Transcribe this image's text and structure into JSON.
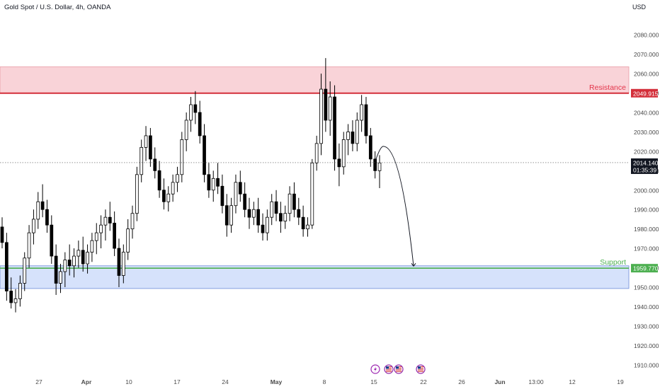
{
  "header": {
    "symbol_title": "Gold Spot / U.S. Dollar, 4h, OANDA",
    "currency": "USD"
  },
  "colors": {
    "up": "#ffffff",
    "down": "#000000",
    "wick": "#000000",
    "resistance_fill": "#f9d3d8",
    "resistance_line": "#d32f3a",
    "resistance_text": "#e3344a",
    "support_fill": "#d6e2fb",
    "support_line": "#4caf50",
    "support_border": "#6d8bd8",
    "price_tag": "#131722",
    "axis_text": "#4a4a4a"
  },
  "chart_data": {
    "type": "candlestick",
    "title": "Gold Spot / U.S. Dollar, 4h, OANDA",
    "y_unit": "USD",
    "ylim": [
      1907,
      2087
    ],
    "y_ticks": [
      "2080.000",
      "2070.000",
      "2060.000",
      "2050.000",
      "2040.000",
      "2030.000",
      "2020.000",
      "2010.000",
      "2000.000",
      "1990.000",
      "1980.000",
      "1970.000",
      "1960.000",
      "1950.000",
      "1940.000",
      "1930.000",
      "1920.000",
      "1910.000"
    ],
    "x_ticks": [
      "27",
      "Apr",
      "10",
      "17",
      "24",
      "May",
      "8",
      "15",
      "22",
      "26",
      "Jun",
      "13:00",
      "12",
      "19"
    ],
    "grid": false,
    "zones": [
      {
        "name": "Resistance",
        "low": 2049.915,
        "high": 2063.5,
        "label": "Resistance",
        "price_label": "2049.915"
      },
      {
        "name": "Support",
        "low": 1949.3,
        "high": 1961.0,
        "line": 1959.77,
        "label": "Support",
        "price_label": "1959.770"
      }
    ],
    "current_price": {
      "value": "2014.140",
      "countdown": "01:35:39"
    },
    "projection": {
      "from": 2016,
      "peak": 2022.5,
      "to": 1960.8,
      "note": "curved arrow projecting a drop to support"
    },
    "event_icons": [
      "flash-icon",
      "us-flag-icon",
      "us-flag-icon",
      "us-flag-icon"
    ],
    "candles": [
      [
        1981,
        1986,
        1970,
        1973
      ],
      [
        1973,
        1978,
        1943,
        1948
      ],
      [
        1948,
        1955,
        1939,
        1942
      ],
      [
        1942,
        1949,
        1937,
        1944
      ],
      [
        1944,
        1956,
        1940,
        1952
      ],
      [
        1952,
        1968,
        1948,
        1965
      ],
      [
        1965,
        1982,
        1960,
        1978
      ],
      [
        1978,
        1990,
        1972,
        1985
      ],
      [
        1985,
        1999,
        1980,
        1994
      ],
      [
        1994,
        2003,
        1986,
        1990
      ],
      [
        1990,
        1995,
        1978,
        1982
      ],
      [
        1982,
        1987,
        1962,
        1966
      ],
      [
        1966,
        1972,
        1946,
        1952
      ],
      [
        1952,
        1962,
        1947,
        1958
      ],
      [
        1958,
        1968,
        1950,
        1964
      ],
      [
        1964,
        1972,
        1956,
        1961
      ],
      [
        1961,
        1970,
        1955,
        1966
      ],
      [
        1966,
        1974,
        1960,
        1969
      ],
      [
        1969,
        1976,
        1958,
        1962
      ],
      [
        1962,
        1972,
        1957,
        1968
      ],
      [
        1968,
        1978,
        1963,
        1974
      ],
      [
        1974,
        1983,
        1967,
        1978
      ],
      [
        1978,
        1987,
        1970,
        1982
      ],
      [
        1982,
        1990,
        1974,
        1986
      ],
      [
        1986,
        1994,
        1979,
        1983
      ],
      [
        1983,
        1989,
        1966,
        1970
      ],
      [
        1970,
        1975,
        1950,
        1956
      ],
      [
        1956,
        1972,
        1952,
        1968
      ],
      [
        1968,
        1985,
        1964,
        1980
      ],
      [
        1980,
        1992,
        1975,
        1988
      ],
      [
        1988,
        2012,
        1984,
        2008
      ],
      [
        2008,
        2026,
        2004,
        2022
      ],
      [
        2022,
        2033,
        2015,
        2028
      ],
      [
        2028,
        2032,
        2012,
        2016
      ],
      [
        2016,
        2022,
        2006,
        2010
      ],
      [
        2010,
        2015,
        1996,
        2000
      ],
      [
        2000,
        2006,
        1990,
        1994
      ],
      [
        1994,
        2002,
        1989,
        1998
      ],
      [
        1998,
        2008,
        1994,
        2004
      ],
      [
        2004,
        2012,
        1999,
        2008
      ],
      [
        2008,
        2030,
        2004,
        2026
      ],
      [
        2026,
        2040,
        2020,
        2036
      ],
      [
        2036,
        2048,
        2030,
        2044
      ],
      [
        2044,
        2051,
        2034,
        2040
      ],
      [
        2040,
        2046,
        2024,
        2028
      ],
      [
        2028,
        2034,
        2004,
        2008
      ],
      [
        2008,
        2014,
        1996,
        2000
      ],
      [
        2000,
        2010,
        1994,
        2006
      ],
      [
        2006,
        2014,
        1998,
        2002
      ],
      [
        2002,
        2008,
        1988,
        1992
      ],
      [
        1992,
        1998,
        1976,
        1982
      ],
      [
        1982,
        1996,
        1978,
        1992
      ],
      [
        1992,
        2008,
        1988,
        2004
      ],
      [
        2004,
        2010,
        1994,
        1998
      ],
      [
        1998,
        2004,
        1986,
        1990
      ],
      [
        1990,
        1996,
        1980,
        1986
      ],
      [
        1986,
        1994,
        1982,
        1990
      ],
      [
        1990,
        1996,
        1978,
        1982
      ],
      [
        1982,
        1988,
        1974,
        1978
      ],
      [
        1978,
        1990,
        1974,
        1986
      ],
      [
        1986,
        1998,
        1982,
        1994
      ],
      [
        1994,
        2000,
        1984,
        1988
      ],
      [
        1988,
        1994,
        1978,
        1984
      ],
      [
        1984,
        1992,
        1980,
        1988
      ],
      [
        1988,
        2002,
        1984,
        1998
      ],
      [
        1998,
        2004,
        1986,
        1990
      ],
      [
        1990,
        1996,
        1982,
        1986
      ],
      [
        1986,
        1992,
        1976,
        1980
      ],
      [
        1980,
        1986,
        1976,
        1982
      ],
      [
        1982,
        2016,
        1980,
        2014
      ],
      [
        2014,
        2028,
        2010,
        2024
      ],
      [
        2024,
        2060,
        2018,
        2052
      ],
      [
        2052,
        2068,
        2030,
        2036
      ],
      [
        2036,
        2056,
        2028,
        2048
      ],
      [
        2048,
        2054,
        2010,
        2016
      ],
      [
        2016,
        2024,
        2002,
        2012
      ],
      [
        2012,
        2030,
        2008,
        2026
      ],
      [
        2026,
        2034,
        2018,
        2030
      ],
      [
        2030,
        2036,
        2020,
        2024
      ],
      [
        2024,
        2040,
        2020,
        2036
      ],
      [
        2036,
        2049,
        2030,
        2044
      ],
      [
        2044,
        2048,
        2024,
        2028
      ],
      [
        2028,
        2032,
        2012,
        2016
      ],
      [
        2016,
        2020,
        2006,
        2010
      ],
      [
        2010,
        2018,
        2001,
        2014
      ]
    ]
  }
}
